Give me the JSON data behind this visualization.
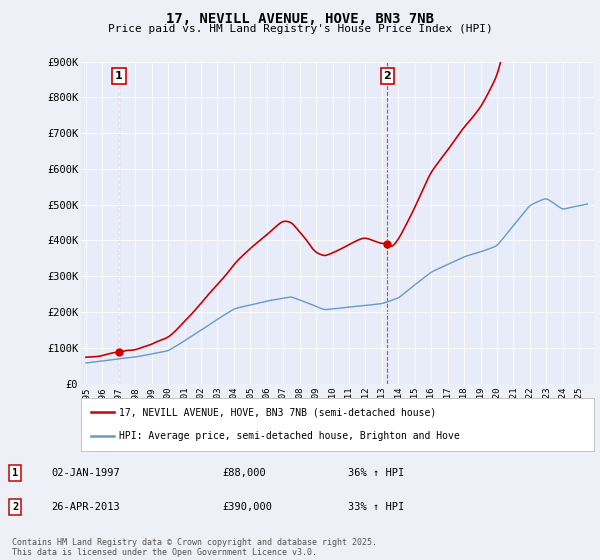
{
  "title": "17, NEVILL AVENUE, HOVE, BN3 7NB",
  "subtitle": "Price paid vs. HM Land Registry's House Price Index (HPI)",
  "background_color": "#eef0f8",
  "plot_bg_color": "#e8ecf8",
  "ylim": [
    0,
    900000
  ],
  "yticks": [
    0,
    100000,
    200000,
    300000,
    400000,
    500000,
    600000,
    700000,
    800000,
    900000
  ],
  "ytick_labels": [
    "£0",
    "£100K",
    "£200K",
    "£300K",
    "£400K",
    "£500K",
    "£600K",
    "£700K",
    "£800K",
    "£900K"
  ],
  "xtick_years": [
    1995,
    1996,
    1997,
    1998,
    1999,
    2000,
    2001,
    2002,
    2003,
    2004,
    2005,
    2006,
    2007,
    2008,
    2009,
    2010,
    2011,
    2012,
    2013,
    2014,
    2015,
    2016,
    2017,
    2018,
    2019,
    2020,
    2021,
    2022,
    2023,
    2024,
    2025
  ],
  "sale1_x": 1997.01,
  "sale1_y": 88000,
  "sale1_label": "1",
  "sale1_date": "02-JAN-1997",
  "sale1_price": "£88,000",
  "sale1_hpi": "36% ↑ HPI",
  "sale2_x": 2013.32,
  "sale2_y": 390000,
  "sale2_label": "2",
  "sale2_date": "26-APR-2013",
  "sale2_price": "£390,000",
  "sale2_hpi": "33% ↑ HPI",
  "legend_line1": "17, NEVILL AVENUE, HOVE, BN3 7NB (semi-detached house)",
  "legend_line2": "HPI: Average price, semi-detached house, Brighton and Hove",
  "footer": "Contains HM Land Registry data © Crown copyright and database right 2025.\nThis data is licensed under the Open Government Licence v3.0.",
  "red_color": "#cc0000",
  "blue_color": "#6699cc"
}
